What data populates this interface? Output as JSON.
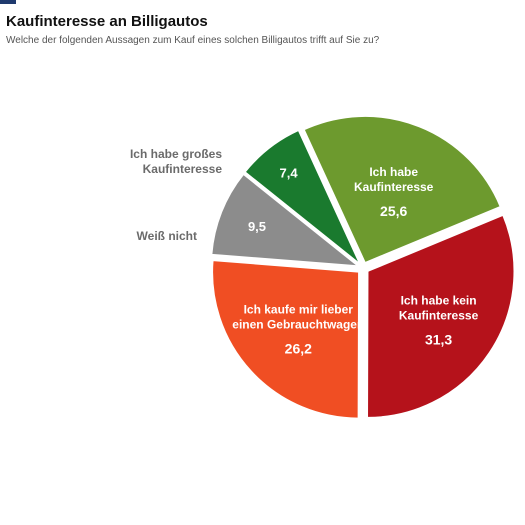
{
  "title": "Kaufinteresse an Billigautos",
  "subtitle": "Welche der folgenden Aussagen zum Kauf eines solchen Billigautos trifft auf Sie zu?",
  "chart_data": {
    "type": "pie",
    "title": "Kaufinteresse an Billigautos",
    "subtitle": "Welche der folgenden Aussagen zum Kauf eines solchen Billigautos trifft auf Sie zu?",
    "slices": [
      {
        "label_lines": [
          "Ich habe kein",
          "Kaufinteresse"
        ],
        "value": 31.3,
        "value_label": "31,3",
        "color": "#b5121b"
      },
      {
        "label_lines": [
          "Ich kaufe mir lieber",
          "einen Gebrauchtwagen"
        ],
        "value": 26.2,
        "value_label": "26,2",
        "color": "#f04e23"
      },
      {
        "label_lines": [
          "Weiß nicht"
        ],
        "value": 9.5,
        "value_label": "9,5",
        "color": "#8c8c8c"
      },
      {
        "label_lines": [
          "Ich habe großes",
          "Kaufinteresse"
        ],
        "value": 7.4,
        "value_label": "7,4",
        "color": "#1a7a2e"
      },
      {
        "label_lines": [
          "Ich habe",
          "Kaufinteresse"
        ],
        "value": 25.6,
        "value_label": "25,6",
        "color": "#6d9a2e"
      }
    ]
  }
}
